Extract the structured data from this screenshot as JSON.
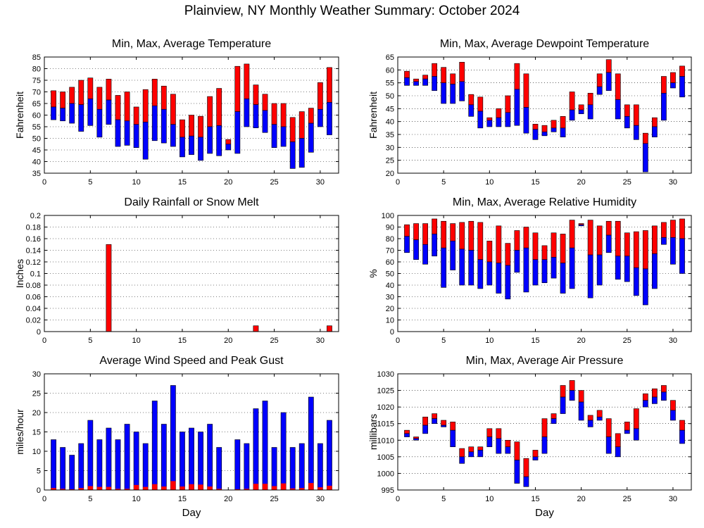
{
  "title": "Plainview, NY Monthly Weather Summary: October 2024",
  "chart_data": [
    {
      "id": "temperature",
      "type": "floating-bar",
      "title": "Min, Max, Average Temperature",
      "ylabel": "Fahrenheit",
      "xlabel": "",
      "ylim": [
        35,
        85
      ],
      "yticks": [
        35,
        40,
        45,
        50,
        55,
        60,
        65,
        70,
        75,
        80,
        85
      ],
      "xlim": [
        0,
        32
      ],
      "xticks": [
        0,
        5,
        10,
        15,
        20,
        25,
        30
      ],
      "grid": true,
      "colors": {
        "upper": "#ff0000",
        "lower": "#0000ff"
      },
      "days": [
        1,
        2,
        3,
        4,
        5,
        6,
        7,
        8,
        9,
        10,
        11,
        12,
        13,
        14,
        15,
        16,
        17,
        18,
        19,
        20,
        21,
        22,
        23,
        24,
        25,
        26,
        27,
        28,
        29,
        30,
        31
      ],
      "min": [
        58,
        57.5,
        56.5,
        53,
        55.5,
        50.5,
        56,
        46.5,
        47,
        46,
        41,
        49,
        48,
        46.5,
        42,
        43,
        40.5,
        43.5,
        42.5,
        45,
        43.5,
        55,
        54.5,
        52.5,
        46,
        46.5,
        37,
        37.5,
        44,
        55,
        51.5
      ],
      "avg": [
        63.5,
        63,
        65,
        64.5,
        67,
        62.5,
        66.5,
        58,
        57.5,
        56,
        57,
        64,
        62.5,
        56,
        50.5,
        51,
        50.5,
        55,
        55.5,
        47.5,
        61.5,
        67,
        64.5,
        62,
        56,
        55,
        48.5,
        50,
        56.5,
        62.5,
        65.5
      ],
      "max": [
        70.5,
        70,
        72,
        75,
        76,
        72,
        75.5,
        68.5,
        70,
        63.5,
        71,
        75.5,
        72.5,
        69,
        58,
        60,
        59.5,
        68,
        71.5,
        49.5,
        81,
        82,
        73,
        69,
        65,
        65,
        59,
        61.5,
        63,
        74,
        80.5
      ]
    },
    {
      "id": "dewpoint",
      "type": "floating-bar",
      "title": "Min, Max, Average Dewpoint Temperature",
      "ylabel": "Fahrenheit",
      "xlabel": "",
      "ylim": [
        20,
        65
      ],
      "yticks": [
        20,
        25,
        30,
        35,
        40,
        45,
        50,
        55,
        60,
        65
      ],
      "xlim": [
        0,
        32
      ],
      "xticks": [
        0,
        5,
        10,
        15,
        20,
        25,
        30
      ],
      "grid": true,
      "colors": {
        "upper": "#ff0000",
        "lower": "#0000ff"
      },
      "days": [
        1,
        2,
        3,
        4,
        5,
        6,
        7,
        8,
        9,
        10,
        11,
        12,
        13,
        14,
        15,
        16,
        17,
        18,
        19,
        20,
        21,
        22,
        23,
        24,
        25,
        26,
        27,
        28,
        29,
        30,
        31
      ],
      "min": [
        54,
        54,
        54,
        52,
        47,
        47,
        48,
        42,
        37.5,
        38,
        38,
        38,
        38.5,
        35.5,
        33,
        34.5,
        36,
        34,
        40.5,
        43,
        41,
        50.5,
        52,
        41,
        37.5,
        33,
        20.5,
        34,
        40.5,
        53,
        49.5
      ],
      "avg": [
        57,
        55.5,
        56.5,
        57.5,
        55,
        54.5,
        55.5,
        46.5,
        44,
        40.5,
        41.5,
        43.5,
        52.5,
        45.5,
        37,
        36,
        37.5,
        37.5,
        44.5,
        44.5,
        46.5,
        53.5,
        59,
        48.5,
        42,
        38.5,
        31.5,
        38,
        51,
        55,
        57.5
      ],
      "max": [
        59.5,
        56.5,
        58,
        62.5,
        61,
        58.5,
        63,
        50.5,
        49.5,
        41.5,
        45,
        50,
        62.5,
        58.5,
        39,
        38.5,
        40.5,
        42,
        51.5,
        46.5,
        51,
        58.5,
        64,
        58.5,
        46.5,
        46.5,
        35.5,
        41.5,
        57.5,
        59,
        61.5
      ]
    },
    {
      "id": "rainfall",
      "type": "bar",
      "title": "Daily Rainfall or Snow Melt",
      "ylabel": "Inches",
      "xlabel": "",
      "ylim": [
        0,
        0.2
      ],
      "yticks": [
        "0",
        "0.02",
        "0.04",
        "0.06",
        "0.08",
        "0.1",
        "0.12",
        "0.14",
        "0.16",
        "0.18",
        "0.2"
      ],
      "xlim": [
        0,
        32
      ],
      "xticks": [
        0,
        5,
        10,
        15,
        20,
        25,
        30
      ],
      "grid": true,
      "colors": {
        "bar": "#ff0000"
      },
      "days": [
        1,
        2,
        3,
        4,
        5,
        6,
        7,
        8,
        9,
        10,
        11,
        12,
        13,
        14,
        15,
        16,
        17,
        18,
        19,
        20,
        21,
        22,
        23,
        24,
        25,
        26,
        27,
        28,
        29,
        30,
        31
      ],
      "values": [
        0,
        0,
        0,
        0,
        0,
        0,
        0.15,
        0,
        0,
        0,
        0,
        0,
        0,
        0,
        0,
        0,
        0,
        0,
        0,
        0,
        0,
        0,
        0.01,
        0,
        0,
        0,
        0,
        0,
        0,
        0,
        0.01
      ]
    },
    {
      "id": "humidity",
      "type": "floating-bar",
      "title": "Min, Max, Average Relative Humidity",
      "ylabel": "%",
      "xlabel": "",
      "ylim": [
        0,
        100
      ],
      "yticks": [
        0,
        10,
        20,
        30,
        40,
        50,
        60,
        70,
        80,
        90,
        100
      ],
      "xlim": [
        0,
        32
      ],
      "xticks": [
        0,
        5,
        10,
        15,
        20,
        25,
        30
      ],
      "grid": true,
      "colors": {
        "upper": "#ff0000",
        "lower": "#0000ff"
      },
      "days": [
        1,
        2,
        3,
        4,
        5,
        6,
        7,
        8,
        9,
        10,
        11,
        12,
        13,
        14,
        15,
        16,
        17,
        18,
        19,
        20,
        21,
        22,
        23,
        24,
        25,
        26,
        27,
        28,
        29,
        30,
        31
      ],
      "min": [
        68,
        62,
        58,
        65,
        38,
        53,
        40,
        40,
        37,
        40,
        33,
        28,
        51,
        34,
        40,
        42,
        46,
        33,
        37,
        91,
        29,
        40,
        68,
        45,
        43,
        31,
        23,
        37,
        75,
        58,
        50
      ],
      "avg": [
        82,
        79,
        75,
        84,
        72,
        78,
        71,
        70,
        62,
        60,
        59,
        57,
        70,
        72,
        62,
        62,
        64,
        59,
        72,
        92,
        66,
        66,
        83,
        65,
        65,
        55,
        54,
        67,
        81,
        81,
        80
      ],
      "max": [
        92,
        93,
        93,
        97,
        95,
        93,
        94,
        95,
        94,
        78,
        91,
        76,
        87,
        90,
        85,
        74,
        85,
        84,
        96,
        93,
        96,
        91,
        95,
        95,
        85,
        86,
        87,
        91,
        94,
        96,
        97
      ]
    },
    {
      "id": "wind",
      "type": "bar",
      "title": "Average Wind Speed and Peak Gust",
      "ylabel": "miles/hour",
      "xlabel": "Day",
      "ylim": [
        0,
        30
      ],
      "yticks": [
        0,
        5,
        10,
        15,
        20,
        25,
        30
      ],
      "xlim": [
        0,
        32
      ],
      "xticks": [
        0,
        5,
        10,
        15,
        20,
        25,
        30
      ],
      "grid": true,
      "colors": {
        "gust": "#0000ff",
        "avg": "#ff0000"
      },
      "days": [
        1,
        2,
        3,
        4,
        5,
        6,
        7,
        8,
        9,
        10,
        11,
        12,
        13,
        14,
        15,
        16,
        17,
        18,
        19,
        20,
        21,
        22,
        23,
        24,
        25,
        26,
        27,
        28,
        29,
        30,
        31
      ],
      "series": [
        {
          "name": "Peak Gust",
          "values": [
            13,
            11,
            9,
            12,
            18,
            13,
            16,
            13,
            17,
            15,
            12,
            23,
            17,
            27,
            15,
            16,
            15,
            17,
            11,
            0,
            13,
            12,
            21,
            23,
            11,
            20,
            11,
            12,
            24,
            12,
            18
          ]
        },
        {
          "name": "Average Wind Speed",
          "values": [
            0.5,
            0.3,
            0.2,
            0.5,
            1.0,
            0.8,
            0.8,
            0.3,
            0.3,
            1.3,
            0.8,
            1.5,
            0.9,
            2.3,
            0.9,
            1.5,
            1.4,
            0.9,
            0.3,
            0,
            0.2,
            0.3,
            1.6,
            1.6,
            1.0,
            1.7,
            0.4,
            0.5,
            1.8,
            0.7,
            1.1
          ]
        }
      ]
    },
    {
      "id": "pressure",
      "type": "floating-bar",
      "title": "Min, Max, Average Air Pressure",
      "ylabel": "millibars",
      "xlabel": "Day",
      "ylim": [
        995,
        1030
      ],
      "yticks": [
        995,
        1000,
        1005,
        1010,
        1015,
        1020,
        1025,
        1030
      ],
      "xlim": [
        0,
        32
      ],
      "xticks": [
        0,
        5,
        10,
        15,
        20,
        25,
        30
      ],
      "grid": true,
      "colors": {
        "upper": "#ff0000",
        "lower": "#0000ff"
      },
      "days": [
        1,
        2,
        3,
        4,
        5,
        6,
        7,
        8,
        9,
        10,
        11,
        12,
        13,
        14,
        15,
        16,
        17,
        18,
        19,
        20,
        21,
        22,
        23,
        24,
        25,
        26,
        27,
        28,
        29,
        30,
        31
      ],
      "min": [
        1011,
        1010,
        1012,
        1015,
        1014,
        1008,
        1003,
        1005,
        1005,
        1008,
        1006,
        1006,
        997,
        996,
        1004,
        1006,
        1015,
        1018,
        1022,
        1016,
        1014,
        1016,
        1006,
        1005,
        1012,
        1010,
        1020,
        1021,
        1022,
        1016,
        1009
      ],
      "avg": [
        1012,
        1010.5,
        1014.5,
        1016.5,
        1014.5,
        1013,
        1005,
        1006.5,
        1007,
        1011,
        1010.5,
        1008,
        1004,
        999,
        1005,
        1011,
        1016.5,
        1023,
        1025,
        1021.5,
        1016,
        1017,
        1011,
        1008,
        1013,
        1013.5,
        1022,
        1023,
        1024.5,
        1019,
        1013
      ],
      "max": [
        1013,
        1011,
        1017,
        1018,
        1016,
        1015.5,
        1007.5,
        1008,
        1008,
        1013.5,
        1013.5,
        1010,
        1009.5,
        1004.5,
        1007,
        1016.5,
        1018,
        1026.5,
        1028,
        1025,
        1017.5,
        1019,
        1016.5,
        1012,
        1015.5,
        1019.5,
        1024,
        1025.5,
        1026.5,
        1022,
        1016
      ]
    }
  ]
}
